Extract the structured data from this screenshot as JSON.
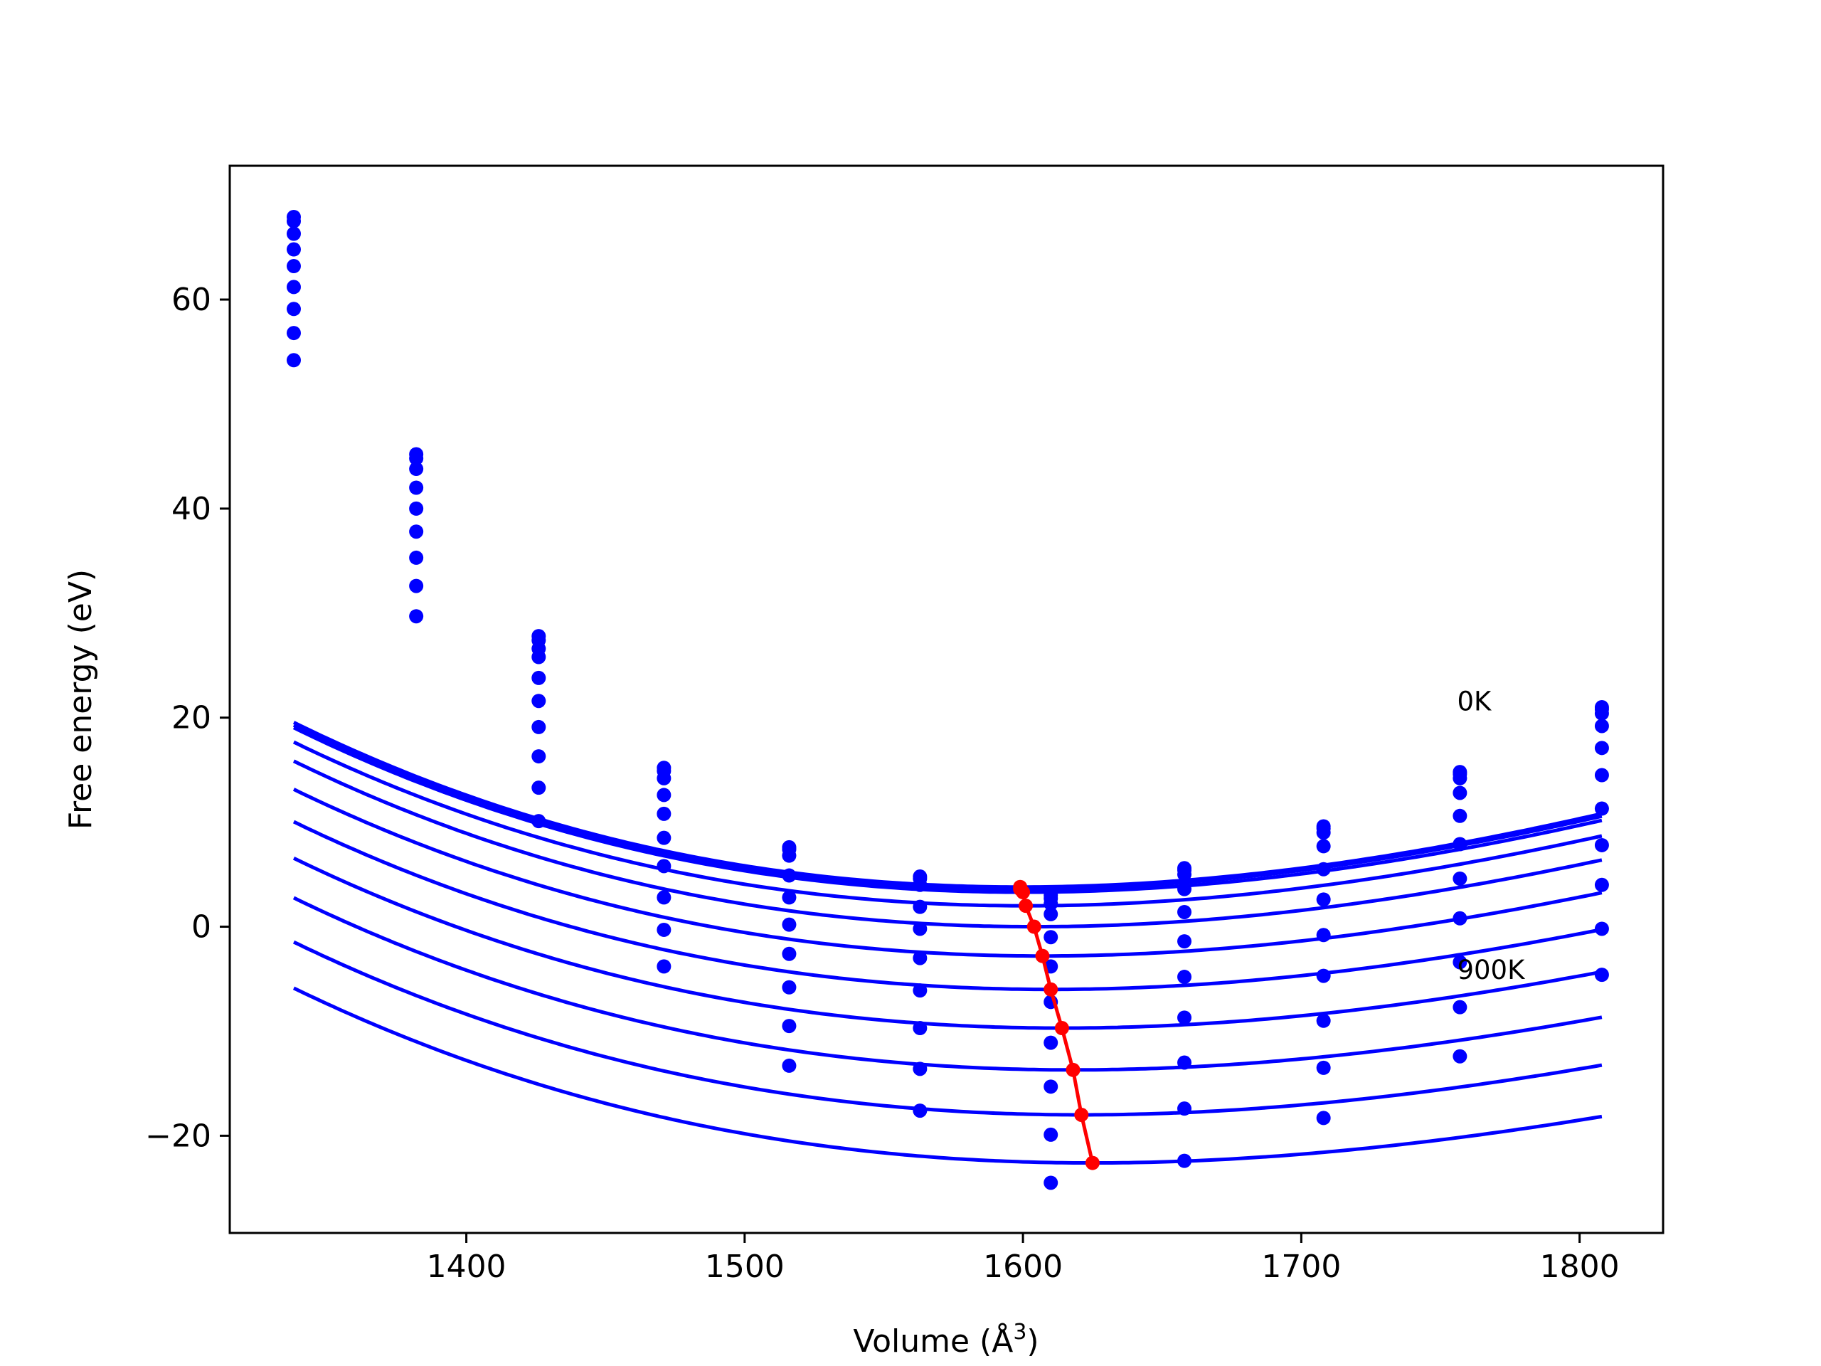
{
  "chart_data": {
    "type": "line",
    "xlabel": "Volume (Å",
    "xlabel_sup": "3",
    "xlabel_end": ")",
    "ylabel": "Free energy (eV)",
    "xlim": [
      1315,
      1830
    ],
    "ylim": [
      -29.3,
      72.8
    ],
    "xticks": [
      1400,
      1500,
      1600,
      1700,
      1800
    ],
    "yticks": [
      -20,
      0,
      20,
      40,
      60
    ],
    "ytick_labels": [
      "−20",
      "0",
      "20",
      "40",
      "60"
    ],
    "grid": false,
    "legend": "none",
    "annotations": [
      {
        "text": "0K",
        "x": 1756,
        "y": 21.5
      },
      {
        "text": "900K",
        "x": 1756,
        "y": -4.2
      }
    ],
    "sample_volumes": [
      1338,
      1382,
      1426,
      1471,
      1516,
      1563,
      1610,
      1658,
      1708,
      1757,
      1808
    ],
    "fit_color": "#0000ff",
    "min_color": "#ff0000",
    "series": [
      {
        "points": [
          67.9,
          45.2,
          27.8,
          15.2,
          7.6,
          4.8,
          3.0,
          5.6,
          9.6,
          14.8,
          21.0
        ],
        "fit": {
          "v0": 1599,
          "f0": 3.8,
          "a": 0.000192,
          "b": -1.5e-07
        }
      },
      {
        "points": [
          67.5,
          44.8,
          27.4,
          14.9,
          7.4,
          4.6,
          2.7,
          5.4,
          9.4,
          14.6,
          20.8
        ],
        "fit": {
          "v0": 1599,
          "f0": 3.6,
          "a": 0.000191,
          "b": -1.5e-07
        }
      },
      {
        "points": [
          66.3,
          43.8,
          26.6,
          14.2,
          6.8,
          4.0,
          2.2,
          5.0,
          9.0,
          14.2,
          20.4
        ],
        "fit": {
          "v0": 1600,
          "f0": 3.3,
          "a": 0.00019,
          "b": -1.5e-07
        }
      },
      {
        "points": [
          64.8,
          42.0,
          25.8,
          12.6,
          4.9,
          1.9,
          1.2,
          3.6,
          7.7,
          12.8,
          19.2
        ],
        "fit": {
          "v0": 1601,
          "f0": 2.0,
          "a": 0.000187,
          "b": -1.5e-07
        }
      },
      {
        "points": [
          63.2,
          40.0,
          23.8,
          10.8,
          2.8,
          -0.2,
          -1.0,
          1.4,
          5.5,
          10.6,
          17.1
        ],
        "fit": {
          "v0": 1604,
          "f0": 0.0,
          "a": 0.000184,
          "b": -1.5e-07
        }
      },
      {
        "points": [
          61.2,
          37.8,
          21.6,
          8.5,
          0.2,
          -3.0,
          -3.8,
          -1.4,
          2.6,
          7.9,
          14.5
        ],
        "fit": {
          "v0": 1607,
          "f0": -2.8,
          "a": 0.00018,
          "b": -1.5e-07
        }
      },
      {
        "points": [
          59.1,
          35.3,
          19.1,
          5.8,
          -2.6,
          -6.1,
          -7.2,
          -4.8,
          -0.8,
          4.6,
          11.3
        ],
        "fit": {
          "v0": 1610,
          "f0": -6.0,
          "a": 0.000176,
          "b": -1.5e-07
        }
      },
      {
        "points": [
          56.8,
          32.6,
          16.3,
          2.8,
          -5.8,
          -9.7,
          -11.1,
          -8.7,
          -4.7,
          0.8,
          7.8
        ],
        "fit": {
          "v0": 1614,
          "f0": -9.7,
          "a": 0.000172,
          "b": -1.5e-07
        }
      },
      {
        "points": [
          54.2,
          29.7,
          13.3,
          -0.3,
          -9.5,
          -13.6,
          -15.3,
          -13.0,
          -9.0,
          -3.4,
          4.0
        ],
        "fit": {
          "v0": 1618,
          "f0": -13.7,
          "a": 0.000168,
          "b": -1.5e-07
        }
      },
      {
        "points": [
          null,
          null,
          10.1,
          -3.8,
          -13.3,
          -17.6,
          -19.9,
          -17.4,
          -13.5,
          -7.7,
          -0.2
        ],
        "fit": {
          "v0": 1621,
          "f0": -18.0,
          "a": 0.000164,
          "b": -1.5e-07
        }
      },
      {
        "points": [
          null,
          null,
          null,
          null,
          null,
          null,
          -24.5,
          -22.4,
          -18.3,
          -12.4,
          -4.6
        ],
        "fit": {
          "v0": 1625,
          "f0": -22.6,
          "a": 0.00016,
          "b": -1.5e-07
        }
      }
    ],
    "minima_curve": {
      "x": [
        1599,
        1599,
        1600,
        1601,
        1604,
        1607,
        1610,
        1614,
        1618,
        1621,
        1625
      ],
      "y": [
        3.8,
        3.6,
        3.3,
        2.0,
        0.0,
        -2.8,
        -6.0,
        -9.7,
        -13.7,
        -18.0,
        -22.6
      ]
    }
  }
}
